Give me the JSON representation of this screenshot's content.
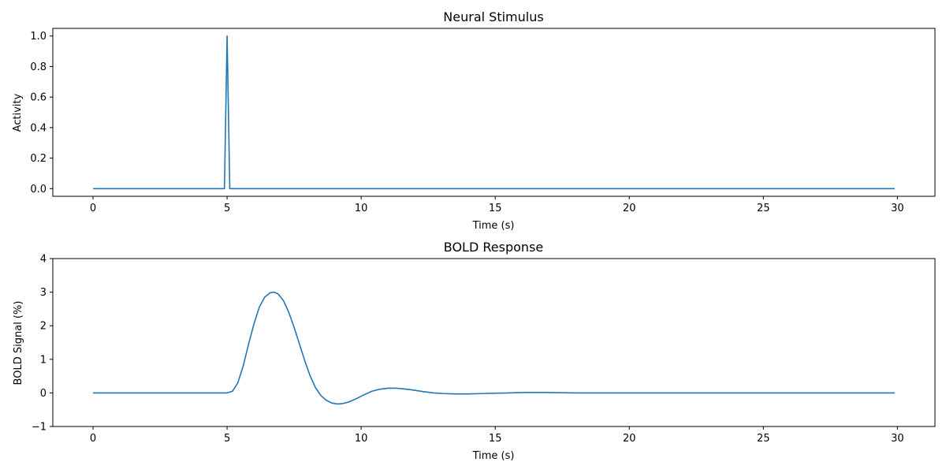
{
  "chart_data": [
    {
      "type": "line",
      "title": "Neural Stimulus",
      "xlabel": "Time (s)",
      "ylabel": "Activity",
      "xlim": [
        -1.5,
        31.4
      ],
      "ylim": [
        -0.05,
        1.05
      ],
      "xticks": [
        0,
        5,
        10,
        15,
        20,
        25,
        30
      ],
      "yticks": [
        0.0,
        0.2,
        0.4,
        0.6,
        0.8,
        1.0
      ],
      "ytick_labels": [
        "0.0",
        "0.2",
        "0.4",
        "0.6",
        "0.8",
        "1.0"
      ],
      "grid": false,
      "color": "#1f77b4",
      "series": [
        {
          "x": [
            0,
            4.9,
            5.0,
            5.1,
            29.9
          ],
          "y": [
            0,
            0,
            1.0,
            0,
            0
          ]
        }
      ]
    },
    {
      "type": "line",
      "title": "BOLD Response",
      "xlabel": "Time (s)",
      "ylabel": "BOLD Signal (%)",
      "xlim": [
        -1.5,
        31.4
      ],
      "ylim": [
        -1,
        4
      ],
      "xticks": [
        0,
        5,
        10,
        15,
        20,
        25,
        30
      ],
      "yticks": [
        -1,
        0,
        1,
        2,
        3,
        4
      ],
      "ytick_labels": [
        "−1",
        "0",
        "1",
        "2",
        "3",
        "4"
      ],
      "grid": false,
      "color": "#1f77b4",
      "series": [
        {
          "x": [
            0,
            5.0,
            5.2,
            5.4,
            5.6,
            5.8,
            6.0,
            6.2,
            6.4,
            6.6,
            6.75,
            6.9,
            7.1,
            7.3,
            7.5,
            7.7,
            7.9,
            8.1,
            8.3,
            8.5,
            8.7,
            8.9,
            9.1,
            9.3,
            9.5,
            9.8,
            10.1,
            10.4,
            10.7,
            11.0,
            11.3,
            11.6,
            11.9,
            12.3,
            12.7,
            13.1,
            13.5,
            14.0,
            14.5,
            15.0,
            15.5,
            16.0,
            17.0,
            18.0,
            20.0,
            25.0,
            29.9
          ],
          "y": [
            0,
            0,
            0.05,
            0.3,
            0.8,
            1.45,
            2.05,
            2.55,
            2.85,
            2.98,
            3.0,
            2.95,
            2.75,
            2.4,
            1.95,
            1.45,
            0.95,
            0.5,
            0.15,
            -0.08,
            -0.22,
            -0.3,
            -0.33,
            -0.32,
            -0.28,
            -0.18,
            -0.06,
            0.05,
            0.11,
            0.14,
            0.14,
            0.12,
            0.09,
            0.04,
            0.0,
            -0.02,
            -0.03,
            -0.03,
            -0.02,
            -0.01,
            0.0,
            0.01,
            0.01,
            0.0,
            0.0,
            0.0,
            0.0
          ]
        }
      ]
    }
  ]
}
